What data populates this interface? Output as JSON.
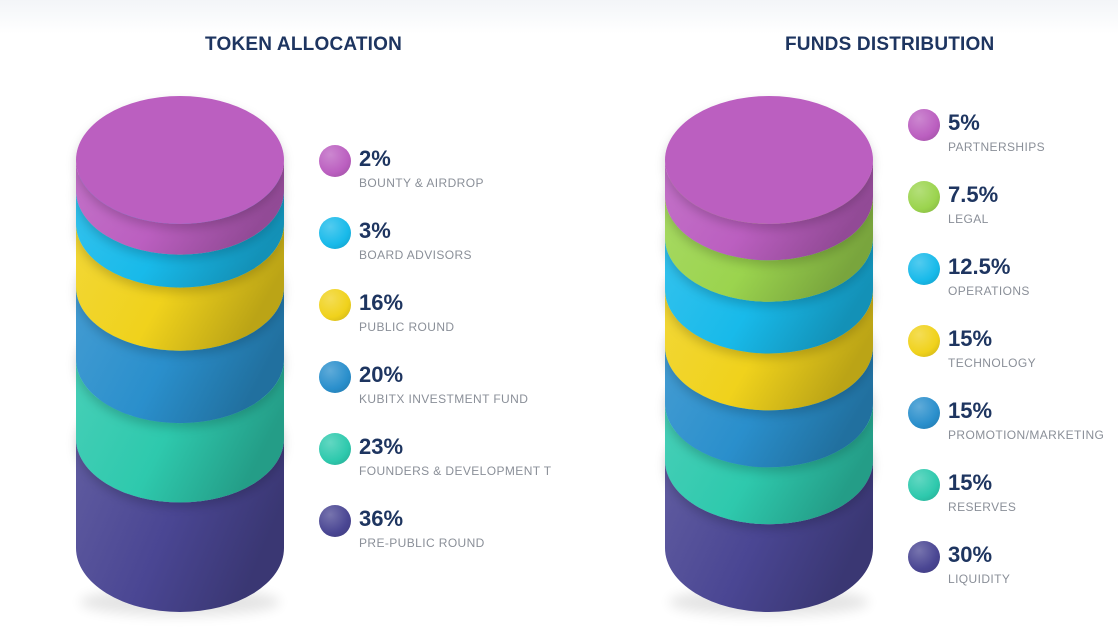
{
  "colors": {
    "title": "#1e3560",
    "label": "#8a8f98",
    "pre_public": "#4a4693",
    "founders": "#2ec9ad",
    "kubitx": "#2a8fcc",
    "public_round": "#f0d21c",
    "board": "#18baea",
    "bounty": "#bb5fc0",
    "legal": "#9bd44e"
  },
  "chart_data": [
    {
      "type": "stacked-cylinder",
      "title": "TOKEN ALLOCATION",
      "legend_position": "right",
      "slices": [
        {
          "label": "PRE-PUBLIC ROUND",
          "value": 36,
          "display": "36%",
          "color_key": "pre_public"
        },
        {
          "label": "FOUNDERS & DEVELOPMENT T",
          "value": 23,
          "display": "23%",
          "color_key": "founders"
        },
        {
          "label": "KUBITX INVESTMENT FUND",
          "value": 20,
          "display": "20%",
          "color_key": "kubitx"
        },
        {
          "label": "PUBLIC ROUND",
          "value": 16,
          "display": "16%",
          "color_key": "public_round"
        },
        {
          "label": "BOARD ADVISORS",
          "value": 3,
          "display": "3%",
          "color_key": "board"
        },
        {
          "label": "BOUNTY & AIRDROP",
          "value": 2,
          "display": "2%",
          "color_key": "bounty"
        }
      ]
    },
    {
      "type": "stacked-cylinder",
      "title": "FUNDS DISTRIBUTION",
      "legend_position": "right",
      "slices": [
        {
          "label": "LIQUIDITY",
          "value": 30,
          "display": "30%",
          "color_key": "pre_public"
        },
        {
          "label": "RESERVES",
          "value": 15,
          "display": "15%",
          "color_key": "founders"
        },
        {
          "label": "PROMOTION/MARKETING",
          "value": 15,
          "display": "15%",
          "color_key": "kubitx"
        },
        {
          "label": "TECHNOLOGY",
          "value": 15,
          "display": "15%",
          "color_key": "public_round"
        },
        {
          "label": "OPERATIONS",
          "value": 12.5,
          "display": "12.5%",
          "color_key": "board"
        },
        {
          "label": "LEGAL",
          "value": 7.5,
          "display": "7.5%",
          "color_key": "legal"
        },
        {
          "label": "PARTNERSHIPS",
          "value": 5,
          "display": "5%",
          "color_key": "bounty"
        }
      ]
    }
  ]
}
